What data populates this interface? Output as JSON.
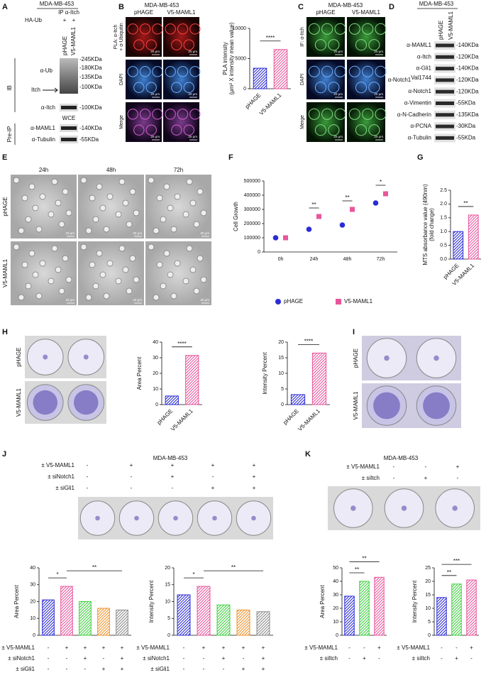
{
  "panel_labels": [
    "A",
    "B",
    "C",
    "D",
    "E",
    "F",
    "G",
    "H",
    "I",
    "J",
    "K"
  ],
  "panel_a": {
    "cell_line": "MDA-MB-453",
    "ip": "IP α-Itch",
    "ha_ub": "HA-Ub",
    "ha_ub_signs": [
      "+",
      "+"
    ],
    "lanes": [
      "pHAGE",
      "V5-MAML1"
    ],
    "ib": "IB",
    "ip_rows": [
      "α-Ub",
      "Itch",
      "α-Itch"
    ],
    "ip_markers": [
      "-245KDa",
      "-180KDa",
      "-135KDa",
      "-100KDa",
      "-100KDa"
    ],
    "wce": "WCE",
    "pre_ip": "Pre-IP",
    "wce_rows": [
      "α-MAML1",
      "α-Tubulin"
    ],
    "wce_markers": [
      "-140KDa",
      "-55KDa"
    ]
  },
  "panel_b": {
    "cell_line": "MDA-MB-453",
    "columns": [
      "pHAGE",
      "V5-MAML1"
    ],
    "rows": [
      [
        "PLA: α-Itch",
        "+ α-Ubiquitin"
      ],
      [
        "DAPI"
      ],
      [
        "Merge"
      ]
    ],
    "scale_bar": "20 μm"
  },
  "panel_c": {
    "cell_line": "MDA-MB-453",
    "columns": [
      "pHAGE",
      "V5-MAML1"
    ],
    "rows": [
      [
        "IF: α-Itch"
      ],
      [
        "DAPI"
      ],
      [
        "Merge"
      ]
    ],
    "scale_bar": "20 μm"
  },
  "panel_d": {
    "cell_line": "MDA-MB-453",
    "lanes": [
      "pHAGE",
      "V5-MAML1"
    ],
    "rows": [
      {
        "label": "α-MAML1",
        "marker": "-140KDa"
      },
      {
        "label": "α-Itch",
        "marker": "-120KDa"
      },
      {
        "label": "α-Gli1",
        "marker": "-140KDa"
      },
      {
        "label": "α-Notch1",
        "superscript": "Val1744",
        "marker": "-120KDa"
      },
      {
        "label": "α-Notch1",
        "marker": "-120KDa"
      },
      {
        "label": "α-Vimentin",
        "marker": "-55KDa"
      },
      {
        "label": "α-N-Cadherin",
        "marker": "-135KDa"
      },
      {
        "label": "α-PCNA",
        "marker": "-30KDa"
      },
      {
        "label": "α-Tubulin",
        "marker": "-55KDa"
      }
    ]
  },
  "panel_e": {
    "columns": [
      "24h",
      "48h",
      "72h"
    ],
    "rows": [
      "pHAGE",
      "V5-MAML1"
    ],
    "scale_bar": "20 μm"
  },
  "panel_h": {
    "rows": [
      "pHAGE",
      "V5-MAML1"
    ]
  },
  "panel_i": {
    "rows": [
      "pHAGE",
      "V5-MAML1"
    ]
  },
  "panel_j": {
    "cell_line": "MDA-MB-453",
    "rows": [
      "± V5-MAML1",
      "± siNotch1",
      "± siGli1"
    ],
    "signs": [
      [
        "-",
        "+",
        "+",
        "+",
        "+"
      ],
      [
        "-",
        "-",
        "+",
        "-",
        "+"
      ],
      [
        "-",
        "-",
        "-",
        "+",
        "+"
      ]
    ]
  },
  "panel_k": {
    "cell_line": "MDA-MB-453",
    "rows": [
      "± V5-MAML1",
      "± siItch"
    ],
    "signs": [
      [
        "-",
        "-",
        "+"
      ],
      [
        "-",
        "+",
        "-"
      ]
    ]
  },
  "chart_data": [
    {
      "type": "bar",
      "ylabel": [
        "PLA intensity",
        "(μm² X intensity mean value)"
      ],
      "categories": [
        "pHAGE",
        "V5-MAML1"
      ],
      "values": [
        3400,
        6500
      ],
      "colors": [
        "#2b2bd6",
        "#e8559b"
      ],
      "ylim": [
        0,
        10000
      ],
      "yticks": [
        0,
        5000,
        10000
      ],
      "significance": [
        {
          "label": "****",
          "between": [
            0,
            1
          ]
        }
      ]
    },
    {
      "type": "dot",
      "ylabel": "Cell Growth",
      "categories": [
        "0h",
        "24h",
        "48h",
        "72h"
      ],
      "series": [
        {
          "name": "pHAGE",
          "color": "#2b2bd6",
          "values": [
            100000,
            160000,
            190000,
            345000
          ]
        },
        {
          "name": "V5-MAML1",
          "color": "#e8559b",
          "values": [
            100000,
            250000,
            300000,
            410000
          ]
        }
      ],
      "ylim": [
        0,
        500000
      ],
      "yticks": [
        0,
        100000,
        200000,
        300000,
        400000,
        500000
      ],
      "significance": [
        {
          "label": "**",
          "category": 1
        },
        {
          "label": "**",
          "category": 2
        },
        {
          "label": "*",
          "category": 3
        }
      ]
    },
    {
      "type": "bar",
      "ylabel": [
        "MTS absorbance value (490nm)",
        "(fold change)"
      ],
      "categories": [
        "pHAGE",
        "V5-MAML1"
      ],
      "values": [
        1.0,
        1.6
      ],
      "colors": [
        "#2b2bd6",
        "#e8559b"
      ],
      "ylim": [
        0,
        2.5
      ],
      "yticks": [
        {
          "value": 0,
          "label": "0.0"
        },
        {
          "value": 0.5,
          "label": "0.5"
        },
        {
          "value": 1,
          "label": "1.0"
        },
        {
          "value": 1.5,
          "label": "1.5"
        },
        {
          "value": 2,
          "label": "2.0"
        },
        {
          "value": 2.5,
          "label": "2.5"
        }
      ],
      "significance": [
        {
          "label": "**",
          "between": [
            0,
            1
          ]
        }
      ]
    },
    {
      "type": "bar",
      "ylabel": "Area Percent",
      "categories": [
        "pHAGE",
        "V5-MAML1"
      ],
      "values": [
        5.5,
        31.5
      ],
      "colors": [
        "#2b2bd6",
        "#e8559b"
      ],
      "ylim": [
        0,
        40
      ],
      "yticks": [
        0,
        10,
        20,
        30,
        40
      ],
      "significance": [
        {
          "label": "****",
          "between": [
            0,
            1
          ]
        }
      ]
    },
    {
      "type": "bar",
      "ylabel": "Intensity Percent",
      "categories": [
        "pHAGE",
        "V5-MAML1"
      ],
      "values": [
        3.2,
        16.5
      ],
      "colors": [
        "#2b2bd6",
        "#e8559b"
      ],
      "ylim": [
        0,
        20
      ],
      "yticks": [
        0,
        5,
        10,
        15,
        20
      ],
      "significance": [
        {
          "label": "****",
          "between": [
            0,
            1
          ]
        }
      ]
    },
    {
      "type": "bar",
      "ylabel": "Area Percent",
      "values": [
        21,
        29,
        20,
        16,
        15
      ],
      "colors": [
        "#2b2bd6",
        "#e8559b",
        "#3ecf3e",
        "#f0922a",
        "#8a8a8a"
      ],
      "ylim": [
        0,
        40
      ],
      "yticks": [
        0,
        10,
        20,
        30,
        40
      ],
      "significance": [
        {
          "label": "*",
          "between": [
            0,
            1
          ]
        },
        {
          "label": "**",
          "between": [
            1,
            4
          ]
        }
      ]
    },
    {
      "type": "bar",
      "ylabel": "Intensity Percent",
      "values": [
        12,
        14.5,
        9,
        7.5,
        7
      ],
      "colors": [
        "#2b2bd6",
        "#e8559b",
        "#3ecf3e",
        "#f0922a",
        "#8a8a8a"
      ],
      "ylim": [
        0,
        20
      ],
      "yticks": [
        0,
        5,
        10,
        15,
        20
      ],
      "significance": [
        {
          "label": "*",
          "between": [
            0,
            1
          ]
        },
        {
          "label": "**",
          "between": [
            1,
            4
          ]
        }
      ]
    },
    {
      "type": "bar",
      "ylabel": "Area Percent",
      "values": [
        29,
        40,
        43
      ],
      "colors": [
        "#2b2bd6",
        "#3ecf3e",
        "#e8559b"
      ],
      "ylim": [
        0,
        50
      ],
      "yticks": [
        0,
        10,
        20,
        30,
        40,
        50
      ],
      "significance": [
        {
          "label": "**",
          "between": [
            0,
            1
          ]
        },
        {
          "label": "**",
          "between": [
            0,
            2
          ]
        }
      ]
    },
    {
      "type": "bar",
      "ylabel": "Intensity Percent",
      "values": [
        14,
        19,
        20.5
      ],
      "colors": [
        "#2b2bd6",
        "#3ecf3e",
        "#e8559b"
      ],
      "ylim": [
        0,
        25
      ],
      "yticks": [
        0,
        5,
        10,
        15,
        20,
        25
      ],
      "significance": [
        {
          "label": "**",
          "between": [
            0,
            1
          ]
        },
        {
          "label": "***",
          "between": [
            0,
            2
          ]
        }
      ]
    }
  ]
}
